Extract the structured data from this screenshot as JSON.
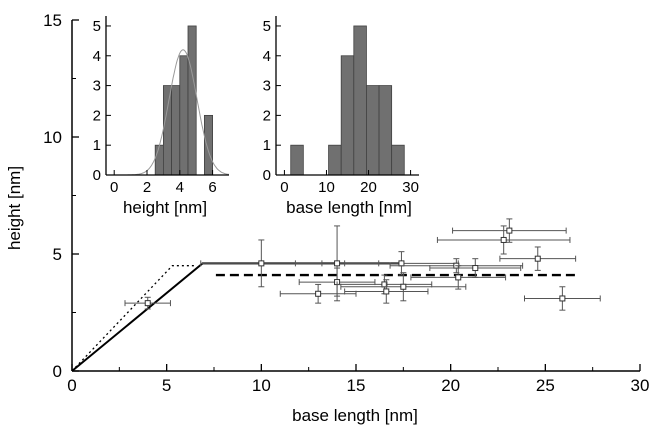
{
  "chart_data": [
    {
      "type": "scatter",
      "title": "",
      "xlabel": "base length [nm]",
      "ylabel": "height [nm]",
      "xlim": [
        0,
        30
      ],
      "ylim": [
        0,
        15
      ],
      "xticks": [
        0,
        5,
        10,
        15,
        20,
        25,
        30
      ],
      "yticks": [
        0,
        5,
        10,
        15
      ],
      "points": [
        {
          "x": 4.0,
          "y": 2.9,
          "xerr": 1.2,
          "yerr": 0.25
        },
        {
          "x": 10.0,
          "y": 4.6,
          "xerr": 3.2,
          "yerr": 1.0
        },
        {
          "x": 13.0,
          "y": 3.3,
          "xerr": 2.0,
          "yerr": 0.4
        },
        {
          "x": 14.0,
          "y": 4.6,
          "xerr": 2.2,
          "yerr": 1.6
        },
        {
          "x": 14.0,
          "y": 3.8,
          "xerr": 2.0,
          "yerr": 0.6
        },
        {
          "x": 16.5,
          "y": 3.7,
          "xerr": 2.5,
          "yerr": 0.4
        },
        {
          "x": 16.6,
          "y": 3.4,
          "xerr": 2.2,
          "yerr": 0.5
        },
        {
          "x": 17.4,
          "y": 4.6,
          "xerr": 3.0,
          "yerr": 0.5
        },
        {
          "x": 17.5,
          "y": 3.6,
          "xerr": 3.3,
          "yerr": 0.6
        },
        {
          "x": 20.3,
          "y": 4.5,
          "xerr": 3.5,
          "yerr": 0.3
        },
        {
          "x": 20.4,
          "y": 4.0,
          "xerr": 2.5,
          "yerr": 0.5
        },
        {
          "x": 21.3,
          "y": 4.4,
          "xerr": 2.4,
          "yerr": 0.4
        },
        {
          "x": 22.8,
          "y": 5.6,
          "xerr": 3.5,
          "yerr": 0.6
        },
        {
          "x": 23.1,
          "y": 6.0,
          "xerr": 3.0,
          "yerr": 0.5
        },
        {
          "x": 24.6,
          "y": 4.8,
          "xerr": 2.0,
          "yerr": 0.5
        },
        {
          "x": 25.9,
          "y": 3.1,
          "xerr": 2.0,
          "yerr": 0.5
        }
      ],
      "lines": [
        {
          "style": "solid",
          "points": [
            [
              0,
              0
            ],
            [
              6.9,
              4.6
            ],
            [
              17.4,
              4.6
            ]
          ]
        },
        {
          "style": "dotted",
          "points": [
            [
              0,
              0
            ],
            [
              5.3,
              4.5
            ],
            [
              6.5,
              4.5
            ]
          ]
        },
        {
          "style": "dashed",
          "points": [
            [
              7.6,
              4.1
            ],
            [
              26.8,
              4.1
            ]
          ]
        }
      ]
    },
    {
      "type": "bar",
      "title": "",
      "xlabel": "height [nm]",
      "xlim": [
        -0.5,
        7
      ],
      "ylim": [
        0,
        5.2
      ],
      "xticks": [
        0,
        2,
        4,
        6
      ],
      "yticks": [
        0,
        1,
        2,
        3,
        4,
        5
      ],
      "bin_width": 0.5,
      "bin_starts": [
        2.5,
        3.0,
        3.5,
        4.0,
        4.5,
        5.0,
        5.5
      ],
      "values": [
        1,
        3,
        3,
        4,
        5,
        0,
        2
      ],
      "fit": {
        "type": "gaussian",
        "mean": 4.2,
        "sigma": 0.85,
        "peak": 4.2
      }
    },
    {
      "type": "bar",
      "title": "",
      "xlabel": "base length [nm]",
      "xlim": [
        -2,
        32
      ],
      "ylim": [
        0,
        5.2
      ],
      "xticks": [
        0,
        10,
        20,
        30
      ],
      "yticks": [
        0,
        1,
        2,
        3,
        4,
        5
      ],
      "bin_width": 3,
      "bin_starts": [
        1.5,
        10.5,
        13.5,
        16.5,
        19.5,
        22.5,
        25.5
      ],
      "values": [
        1,
        1,
        4,
        5,
        3,
        3,
        1
      ]
    }
  ],
  "colors": {
    "axis": "#000000",
    "bar_fill": "#707070",
    "bar_stroke": "#404040",
    "point_fill": "#ffffff",
    "errorbar": "#555555",
    "fit_curve": "#9a9a9a"
  }
}
